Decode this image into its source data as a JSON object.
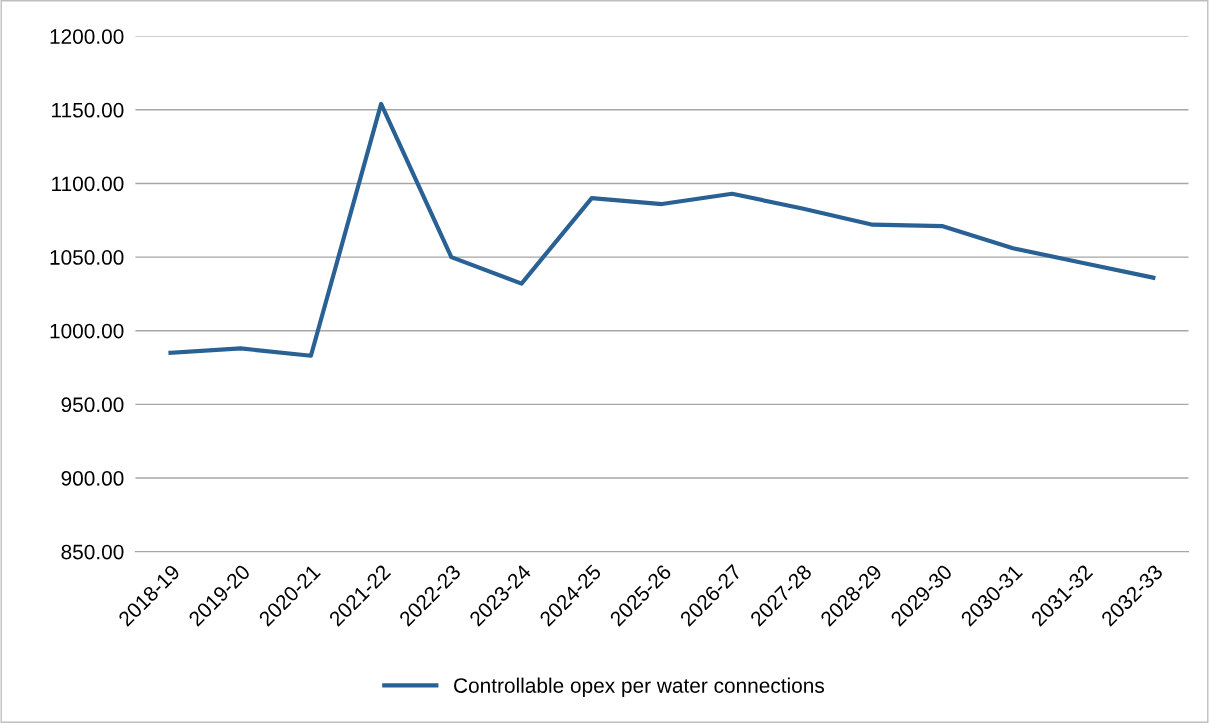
{
  "chart_data": {
    "type": "line",
    "categories": [
      "2018-19",
      "2019-20",
      "2020-21",
      "2021-22",
      "2022-23",
      "2023-24",
      "2024-25",
      "2025-26",
      "2026-27",
      "2027-28",
      "2028-29",
      "2029-30",
      "2030-31",
      "2031-32",
      "2032-33"
    ],
    "series": [
      {
        "name": "Controllable opex per water connections",
        "color": "#2a6194",
        "values": [
          985,
          988,
          983,
          1154,
          1050,
          1032,
          1090,
          1086,
          1093,
          1083,
          1072,
          1071,
          1056,
          1046,
          1036
        ]
      }
    ],
    "ylim": [
      850,
      1200
    ],
    "yticks": [
      {
        "value": 850,
        "label": "850.00"
      },
      {
        "value": 900,
        "label": "900.00"
      },
      {
        "value": 950,
        "label": "950.00"
      },
      {
        "value": 1000,
        "label": "1000.00"
      },
      {
        "value": 1050,
        "label": "1050.00"
      },
      {
        "value": 1100,
        "label": "1100.00"
      },
      {
        "value": 1150,
        "label": "1150.00"
      },
      {
        "value": 1200,
        "label": "1200.00"
      }
    ],
    "grid": "y",
    "legend": "bottom",
    "marker": "none",
    "line_style": "solid"
  }
}
